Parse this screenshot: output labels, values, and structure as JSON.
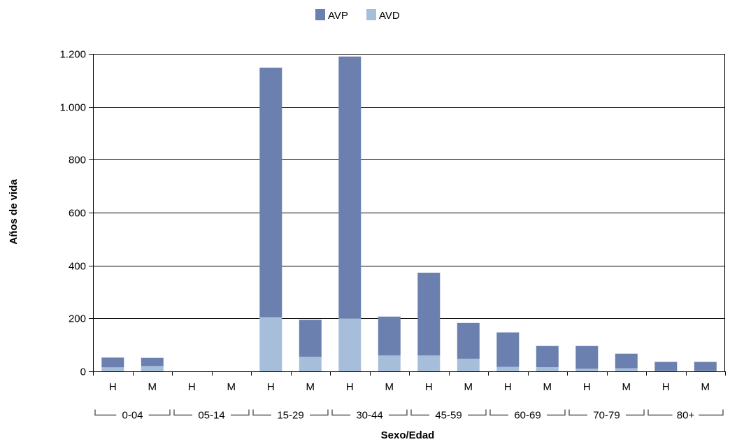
{
  "chart_data": {
    "type": "bar",
    "stacked": true,
    "title": "",
    "xlabel": "Sexo/Edad",
    "ylabel": "Años de vida",
    "ylim": [
      0,
      1200
    ],
    "yticks": [
      0,
      200,
      400,
      600,
      800,
      1000,
      1200
    ],
    "ytick_labels": [
      "0",
      "200",
      "400",
      "600",
      "800",
      "1.000",
      "1.200"
    ],
    "grid": "horizontal",
    "legend_position": "top-center",
    "groups": [
      "0-04",
      "05-14",
      "15-29",
      "30-44",
      "45-59",
      "60-69",
      "70-79",
      "80+"
    ],
    "categories": [
      "H",
      "M",
      "H",
      "M",
      "H",
      "M",
      "H",
      "M",
      "H",
      "M",
      "H",
      "M",
      "H",
      "M",
      "H",
      "M"
    ],
    "series": [
      {
        "name": "AVD",
        "color": "#a7bedb",
        "values": [
          15,
          20,
          0,
          0,
          205,
          55,
          200,
          60,
          60,
          48,
          17,
          16,
          10,
          12,
          2,
          2
        ]
      },
      {
        "name": "AVP",
        "color": "#6b80ae",
        "values": [
          37,
          31,
          0,
          0,
          943,
          140,
          990,
          147,
          313,
          135,
          130,
          80,
          86,
          55,
          34,
          34
        ]
      }
    ],
    "legend_order": [
      "AVP",
      "AVD"
    ]
  }
}
